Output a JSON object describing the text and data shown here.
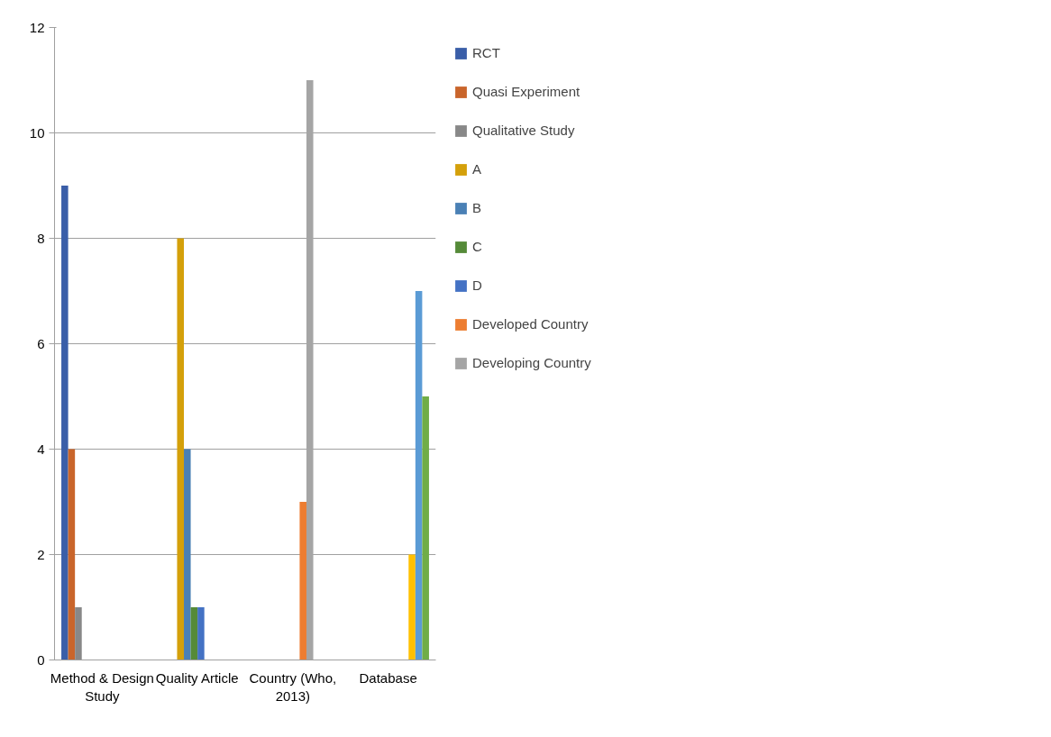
{
  "chart_data": {
    "type": "bar",
    "categories": [
      "Method & Design Study",
      "Quality Article",
      "Country (Who, 2013)",
      "Database"
    ],
    "ylim": [
      0,
      12
    ],
    "yticks": [
      0,
      2,
      4,
      6,
      8,
      10,
      12
    ],
    "grid": "y",
    "legend": "right",
    "series": [
      {
        "name": "RCT",
        "color": "#3a5ea8",
        "values": [
          9,
          null,
          null,
          null
        ]
      },
      {
        "name": "Quasi Experiment",
        "color": "#c9652b",
        "values": [
          4,
          null,
          null,
          null
        ]
      },
      {
        "name": "Qualitative Study",
        "color": "#888888",
        "values": [
          1,
          null,
          null,
          null
        ]
      },
      {
        "name": "A",
        "color": "#d4a00a",
        "values": [
          null,
          8,
          null,
          null
        ]
      },
      {
        "name": "B",
        "color": "#4a80b5",
        "values": [
          null,
          4,
          null,
          null
        ]
      },
      {
        "name": "C",
        "color": "#558a38",
        "values": [
          null,
          1,
          null,
          null
        ]
      },
      {
        "name": "D",
        "color": "#4472c4",
        "values": [
          null,
          1,
          null,
          null
        ]
      },
      {
        "name": "Developed Country",
        "color": "#ed7d31",
        "values": [
          null,
          null,
          3,
          null
        ]
      },
      {
        "name": "Developing Country",
        "color": "#a5a5a5",
        "values": [
          null,
          null,
          11,
          null
        ]
      },
      {
        "color": "#ffc000",
        "values": [
          null,
          null,
          null,
          2
        ]
      },
      {
        "color": "#5b9bd5",
        "values": [
          null,
          null,
          null,
          7
        ]
      },
      {
        "color": "#70ad47",
        "values": [
          null,
          null,
          null,
          5
        ]
      }
    ]
  }
}
